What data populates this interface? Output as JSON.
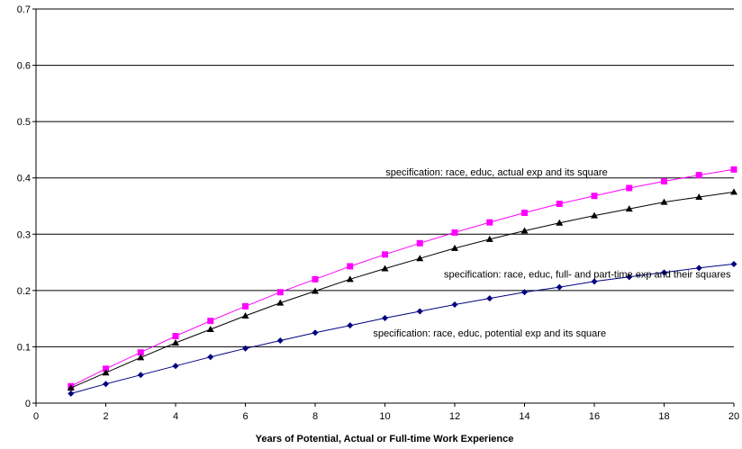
{
  "chart_data": {
    "type": "line",
    "title": "",
    "xlabel": "Years of Potential, Actual or Full-time Work Experience",
    "ylabel": "",
    "xlim": [
      0,
      20
    ],
    "ylim": [
      0,
      0.7
    ],
    "x_ticks": [
      "0",
      "2",
      "4",
      "6",
      "8",
      "10",
      "12",
      "14",
      "16",
      "18",
      "20"
    ],
    "y_ticks": [
      "0",
      "0.1",
      "0.2",
      "0.3",
      "0.4",
      "0.5",
      "0.6",
      "0.7"
    ],
    "grid": "horizontal",
    "x": [
      1,
      2,
      3,
      4,
      5,
      6,
      7,
      8,
      9,
      10,
      11,
      12,
      13,
      14,
      15,
      16,
      17,
      18,
      19,
      20
    ],
    "series": [
      {
        "marker": "square",
        "color": "#ff00ff",
        "values": [
          0.03,
          0.061,
          0.09,
          0.119,
          0.146,
          0.172,
          0.197,
          0.22,
          0.243,
          0.264,
          0.284,
          0.303,
          0.321,
          0.338,
          0.354,
          0.368,
          0.382,
          0.394,
          0.405,
          0.415
        ]
      },
      {
        "marker": "triangle",
        "color": "#000000",
        "values": [
          0.027,
          0.054,
          0.081,
          0.107,
          0.131,
          0.155,
          0.178,
          0.199,
          0.22,
          0.239,
          0.257,
          0.275,
          0.291,
          0.306,
          0.32,
          0.333,
          0.345,
          0.357,
          0.366,
          0.375
        ]
      },
      {
        "marker": "diamond",
        "color": "#000080",
        "values": [
          0.017,
          0.034,
          0.05,
          0.066,
          0.082,
          0.097,
          0.111,
          0.125,
          0.138,
          0.151,
          0.163,
          0.175,
          0.186,
          0.197,
          0.206,
          0.216,
          0.224,
          0.232,
          0.24,
          0.247
        ]
      }
    ],
    "annotations": [
      {
        "text": "specification: race, educ, actual exp and its square",
        "x": 13.2,
        "y": 0.404
      },
      {
        "text": "specification: race, educ, full- and part-time exp and their squares",
        "x": 15.8,
        "y": 0.223
      },
      {
        "text": "specification: race, educ, potential exp and its square",
        "x": 13.0,
        "y": 0.118
      }
    ]
  }
}
